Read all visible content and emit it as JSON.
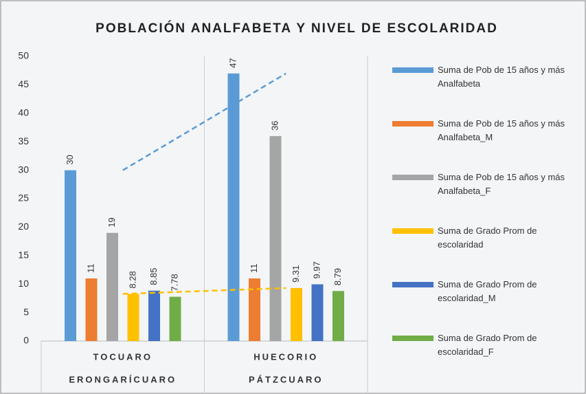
{
  "chart_data": {
    "type": "bar",
    "title": "POBLACIÓN ANALFABETA Y NIVEL DE ESCOLARIDAD",
    "categories": [
      "TOCUARO",
      "HUECORIO"
    ],
    "category_groups": [
      "ERONGARÍCUARO",
      "PÁTZCUARO"
    ],
    "series": [
      {
        "name": "Suma de Pob de 15 años y más Analfabeta",
        "color": "#5b9bd5",
        "values": [
          30,
          47
        ],
        "trendline": true
      },
      {
        "name": "Suma de Pob de 15 años y más Analfabeta_M",
        "color": "#ed7d31",
        "values": [
          11,
          11
        ]
      },
      {
        "name": "Suma de Pob de 15 años y más Analfabeta_F",
        "color": "#a5a5a5",
        "values": [
          19,
          36
        ]
      },
      {
        "name": "Suma de Grado Prom de escolaridad",
        "color": "#ffc000",
        "values": [
          8.28,
          9.31
        ],
        "trendline": true
      },
      {
        "name": "Suma de Grado Prom de escolaridad_M",
        "color": "#4472c4",
        "values": [
          8.85,
          9.97
        ]
      },
      {
        "name": "Suma de Grado Prom de escolaridad_F",
        "color": "#70ad47",
        "values": [
          7.78,
          8.79
        ]
      }
    ],
    "ylim": [
      0,
      50
    ],
    "yticks": [
      0,
      5,
      10,
      15,
      20,
      25,
      30,
      35,
      40,
      45,
      50
    ],
    "legend": "right"
  }
}
